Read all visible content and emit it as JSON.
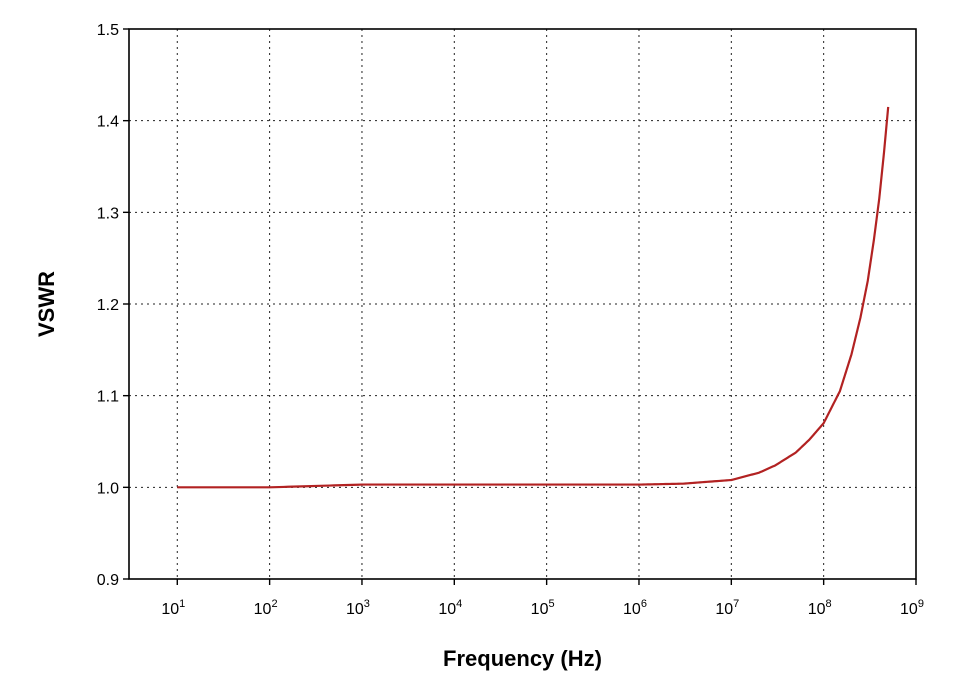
{
  "chart_data": {
    "type": "line",
    "title": "",
    "xlabel": "Frequency (Hz)",
    "ylabel": "VSWR",
    "x_scale": "log",
    "xlim": [
      3,
      1000000000
    ],
    "ylim": [
      0.9,
      1.5
    ],
    "grid": true,
    "grid_style": "dotted",
    "x_ticks": [
      {
        "value": 10,
        "base": "10",
        "exp": "1"
      },
      {
        "value": 100,
        "base": "10",
        "exp": "2"
      },
      {
        "value": 1000,
        "base": "10",
        "exp": "3"
      },
      {
        "value": 10000,
        "base": "10",
        "exp": "4"
      },
      {
        "value": 100000,
        "base": "10",
        "exp": "5"
      },
      {
        "value": 1000000,
        "base": "10",
        "exp": "6"
      },
      {
        "value": 10000000,
        "base": "10",
        "exp": "7"
      },
      {
        "value": 100000000,
        "base": "10",
        "exp": "8"
      },
      {
        "value": 1000000000,
        "base": "10",
        "exp": "9"
      }
    ],
    "y_ticks": [
      {
        "value": 0.9,
        "label": "0.9"
      },
      {
        "value": 1.0,
        "label": "1.0"
      },
      {
        "value": 1.1,
        "label": "1.1"
      },
      {
        "value": 1.2,
        "label": "1.2"
      },
      {
        "value": 1.3,
        "label": "1.3"
      },
      {
        "value": 1.4,
        "label": "1.4"
      },
      {
        "value": 1.5,
        "label": "1.5"
      }
    ],
    "series": [
      {
        "color": "#b22222",
        "points": [
          [
            10,
            1.0
          ],
          [
            100,
            1.0
          ],
          [
            1000,
            1.003
          ],
          [
            10000,
            1.003
          ],
          [
            100000,
            1.003
          ],
          [
            1000000,
            1.003
          ],
          [
            3000000,
            1.004
          ],
          [
            10000000,
            1.008
          ],
          [
            20000000,
            1.016
          ],
          [
            30000000,
            1.024
          ],
          [
            50000000,
            1.038
          ],
          [
            70000000,
            1.052
          ],
          [
            100000000,
            1.07
          ],
          [
            150000000,
            1.105
          ],
          [
            200000000,
            1.145
          ],
          [
            250000000,
            1.185
          ],
          [
            300000000,
            1.225
          ],
          [
            350000000,
            1.27
          ],
          [
            400000000,
            1.315
          ],
          [
            450000000,
            1.365
          ],
          [
            500000000,
            1.415
          ]
        ]
      }
    ]
  }
}
